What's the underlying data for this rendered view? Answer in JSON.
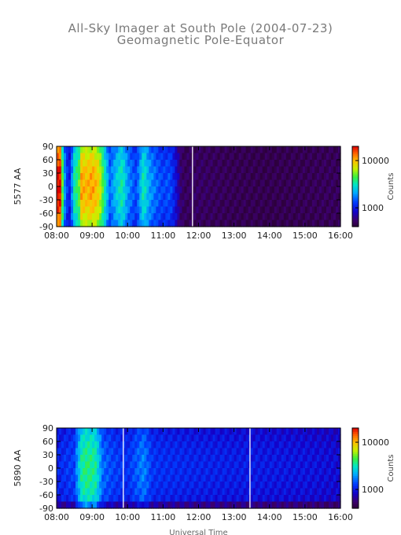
{
  "title": "All-Sky Imager at South Pole (2004-07-23)",
  "subtitle": "Geomagnetic Pole-Equator",
  "chart_data": [
    {
      "type": "heatmap",
      "ylabel": "5577 AA",
      "xlabel": "",
      "x_ticks": [
        "08:00",
        "09:00",
        "10:00",
        "11:00",
        "12:00",
        "13:00",
        "14:00",
        "15:00",
        "16:00"
      ],
      "xlim_hours": [
        8,
        16
      ],
      "y_ticks": [
        90,
        60,
        30,
        0,
        -30,
        -60,
        -90
      ],
      "ylim": [
        -90,
        90
      ],
      "colorbar": {
        "label": "Counts",
        "scale": "log",
        "ticks": [
          10000,
          1000
        ],
        "tick_labels": [
          "10000",
          "1000"
        ],
        "range": [
          400,
          20000
        ]
      },
      "time_profile": [
        {
          "t": 8.0,
          "v": 1.0
        },
        {
          "t": 8.1,
          "v": 1.0
        },
        {
          "t": 8.2,
          "v": 0.45
        },
        {
          "t": 8.35,
          "v": 0.2
        },
        {
          "t": 8.5,
          "v": 0.55
        },
        {
          "t": 8.62,
          "v": 0.6
        },
        {
          "t": 8.7,
          "v": 0.85
        },
        {
          "t": 8.85,
          "v": 0.82
        },
        {
          "t": 9.0,
          "v": 0.86
        },
        {
          "t": 9.2,
          "v": 0.78
        },
        {
          "t": 9.35,
          "v": 0.55
        },
        {
          "t": 9.5,
          "v": 0.35
        },
        {
          "t": 9.7,
          "v": 0.48
        },
        {
          "t": 9.85,
          "v": 0.55
        },
        {
          "t": 10.0,
          "v": 0.4
        },
        {
          "t": 10.25,
          "v": 0.3
        },
        {
          "t": 10.45,
          "v": 0.55
        },
        {
          "t": 10.6,
          "v": 0.42
        },
        {
          "t": 10.8,
          "v": 0.35
        },
        {
          "t": 11.0,
          "v": 0.3
        },
        {
          "t": 11.2,
          "v": 0.32
        },
        {
          "t": 11.35,
          "v": 0.22
        },
        {
          "t": 11.5,
          "v": 0.08
        },
        {
          "t": 11.6,
          "v": 0.05
        },
        {
          "t": 12.0,
          "v": 0.06
        },
        {
          "t": 13.0,
          "v": 0.04
        },
        {
          "t": 14.0,
          "v": 0.03
        },
        {
          "t": 15.0,
          "v": 0.04
        },
        {
          "t": 16.0,
          "v": 0.05
        }
      ],
      "gaps_hours": [
        11.83
      ],
      "data_end_hours": 16.0
    },
    {
      "type": "heatmap",
      "ylabel": "5890 AA",
      "xlabel": "Universal Time",
      "x_ticks": [
        "08:00",
        "09:00",
        "10:00",
        "11:00",
        "12:00",
        "13:00",
        "14:00",
        "15:00",
        "16:00"
      ],
      "xlim_hours": [
        8,
        16
      ],
      "y_ticks": [
        90,
        60,
        30,
        0,
        -30,
        -60,
        -90
      ],
      "ylim": [
        -90,
        90
      ],
      "colorbar": {
        "label": "Counts",
        "scale": "log",
        "ticks": [
          10000,
          1000
        ],
        "tick_labels": [
          "10000",
          "1000"
        ],
        "range": [
          400,
          20000
        ]
      },
      "time_profile": [
        {
          "t": 8.0,
          "v": 0.25
        },
        {
          "t": 8.3,
          "v": 0.28
        },
        {
          "t": 8.5,
          "v": 0.3
        },
        {
          "t": 8.7,
          "v": 0.55
        },
        {
          "t": 8.85,
          "v": 0.58
        },
        {
          "t": 9.1,
          "v": 0.55
        },
        {
          "t": 9.3,
          "v": 0.35
        },
        {
          "t": 9.6,
          "v": 0.3
        },
        {
          "t": 10.0,
          "v": 0.27
        },
        {
          "t": 10.45,
          "v": 0.38
        },
        {
          "t": 10.7,
          "v": 0.28
        },
        {
          "t": 11.0,
          "v": 0.27
        },
        {
          "t": 12.0,
          "v": 0.25
        },
        {
          "t": 13.0,
          "v": 0.24
        },
        {
          "t": 14.0,
          "v": 0.23
        },
        {
          "t": 15.0,
          "v": 0.22
        },
        {
          "t": 16.0,
          "v": 0.2
        }
      ],
      "gaps_hours": [
        9.88,
        13.45
      ],
      "data_end_hours": 16.0
    }
  ]
}
